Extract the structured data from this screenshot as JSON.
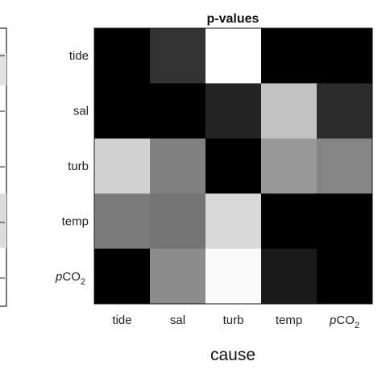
{
  "chart_data": {
    "type": "heatmap",
    "title": "p-values",
    "xlabel": "cause",
    "ylabel": "",
    "x_ticks": [
      {
        "italic": "",
        "main": "tide",
        "sub": ""
      },
      {
        "italic": "",
        "main": "sal",
        "sub": ""
      },
      {
        "italic": "",
        "main": "turb",
        "sub": ""
      },
      {
        "italic": "",
        "main": "temp",
        "sub": ""
      },
      {
        "italic": "p",
        "main": "CO",
        "sub": "2"
      }
    ],
    "y_ticks": [
      {
        "italic": "",
        "main": "tide",
        "sub": ""
      },
      {
        "italic": "",
        "main": "sal",
        "sub": ""
      },
      {
        "italic": "",
        "main": "turb",
        "sub": ""
      },
      {
        "italic": "",
        "main": "temp",
        "sub": ""
      },
      {
        "italic": "p",
        "main": "CO",
        "sub": "2"
      }
    ],
    "colormap": "grayscale (black = low, white = high)",
    "values": [
      [
        0.0,
        0.2,
        1.0,
        0.0,
        0.0
      ],
      [
        0.0,
        0.0,
        0.14,
        0.76,
        0.17
      ],
      [
        0.82,
        0.5,
        0.0,
        0.6,
        0.52
      ],
      [
        0.48,
        0.46,
        0.85,
        0.0,
        0.0
      ],
      [
        0.0,
        0.55,
        0.98,
        0.1,
        0.0
      ]
    ]
  },
  "left_panel": {
    "description": "partially visible neighbouring panel, cropped at left edge"
  }
}
